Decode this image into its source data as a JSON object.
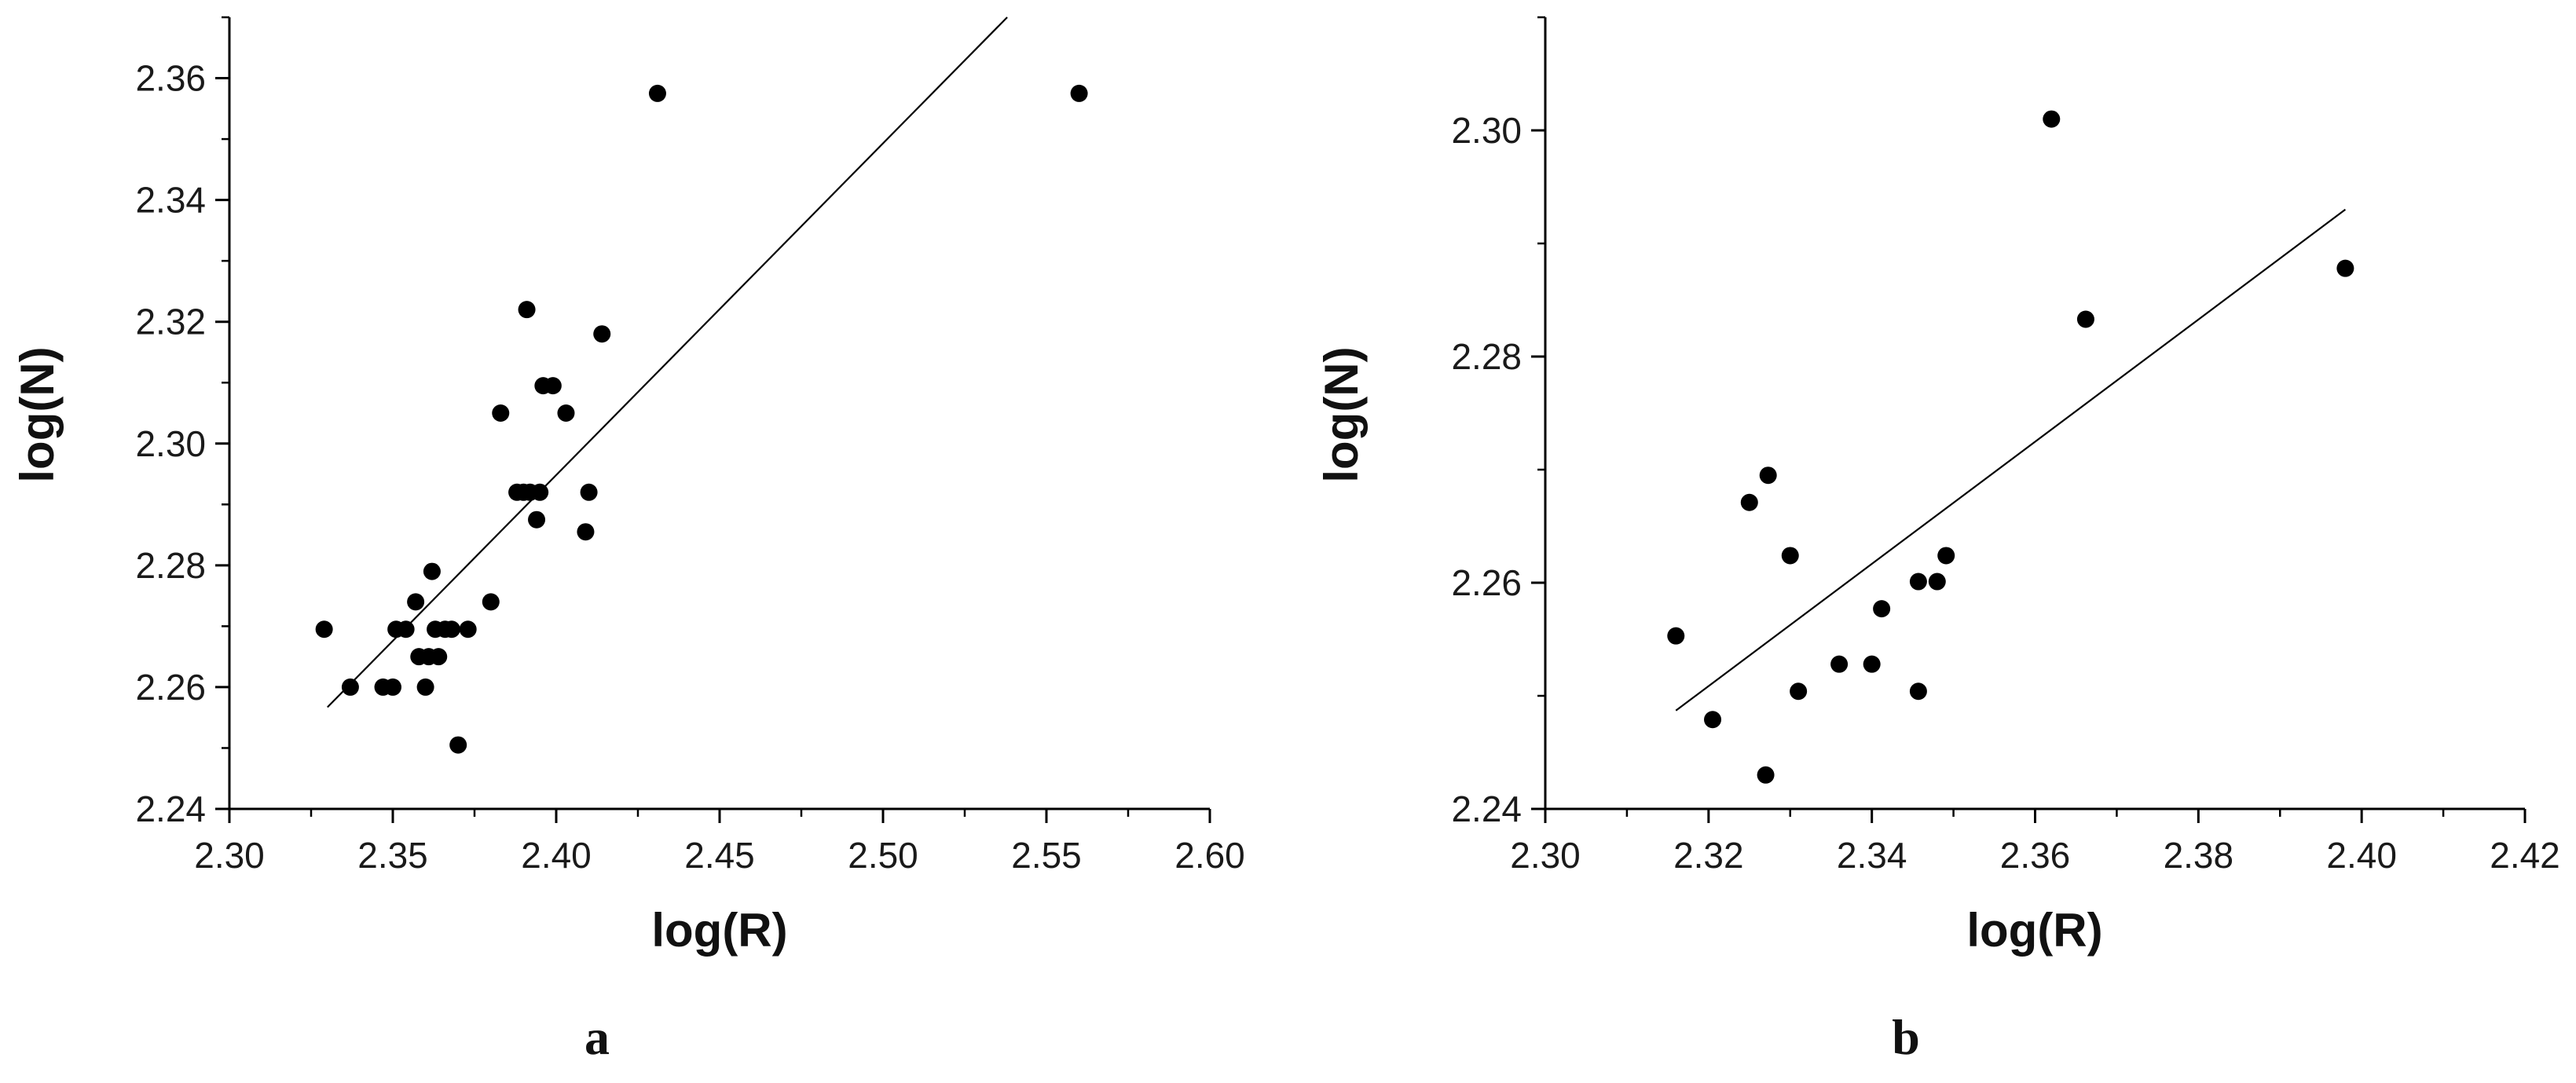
{
  "chart_data": [
    {
      "type": "scatter",
      "panel_label": "a",
      "xlabel": "log(R)",
      "ylabel": "log(N)",
      "xlim": [
        2.3,
        2.6
      ],
      "ylim": [
        2.24,
        2.37
      ],
      "xticks": [
        "2.30",
        "2.35",
        "2.40",
        "2.45",
        "2.50",
        "2.55",
        "2.60"
      ],
      "yticks": [
        "2.24",
        "2.26",
        "2.28",
        "2.30",
        "2.32",
        "2.34",
        "2.36"
      ],
      "grid": false,
      "points": [
        {
          "x": 2.329,
          "y": 2.2695
        },
        {
          "x": 2.337,
          "y": 2.26
        },
        {
          "x": 2.347,
          "y": 2.26
        },
        {
          "x": 2.35,
          "y": 2.26
        },
        {
          "x": 2.351,
          "y": 2.2695
        },
        {
          "x": 2.354,
          "y": 2.2695
        },
        {
          "x": 2.357,
          "y": 2.274
        },
        {
          "x": 2.358,
          "y": 2.265
        },
        {
          "x": 2.36,
          "y": 2.26
        },
        {
          "x": 2.361,
          "y": 2.265
        },
        {
          "x": 2.362,
          "y": 2.279
        },
        {
          "x": 2.363,
          "y": 2.2695
        },
        {
          "x": 2.364,
          "y": 2.265
        },
        {
          "x": 2.366,
          "y": 2.2695
        },
        {
          "x": 2.368,
          "y": 2.2695
        },
        {
          "x": 2.37,
          "y": 2.2505
        },
        {
          "x": 2.373,
          "y": 2.2695
        },
        {
          "x": 2.38,
          "y": 2.274
        },
        {
          "x": 2.383,
          "y": 2.305
        },
        {
          "x": 2.388,
          "y": 2.292
        },
        {
          "x": 2.39,
          "y": 2.292
        },
        {
          "x": 2.391,
          "y": 2.322
        },
        {
          "x": 2.392,
          "y": 2.292
        },
        {
          "x": 2.394,
          "y": 2.2875
        },
        {
          "x": 2.395,
          "y": 2.292
        },
        {
          "x": 2.396,
          "y": 2.3095
        },
        {
          "x": 2.399,
          "y": 2.3095
        },
        {
          "x": 2.403,
          "y": 2.305
        },
        {
          "x": 2.409,
          "y": 2.2855
        },
        {
          "x": 2.41,
          "y": 2.292
        },
        {
          "x": 2.414,
          "y": 2.318
        },
        {
          "x": 2.431,
          "y": 2.3575
        },
        {
          "x": 2.56,
          "y": 2.3575
        }
      ],
      "fit_line": [
        {
          "x": 2.33,
          "y": 2.2567
        },
        {
          "x": 2.538,
          "y": 2.37
        }
      ]
    },
    {
      "type": "scatter",
      "panel_label": "b",
      "xlabel": "log(R)",
      "ylabel": "log(N)",
      "xlim": [
        2.3,
        2.42
      ],
      "ylim": [
        2.24,
        2.31
      ],
      "xticks": [
        "2.30",
        "2.32",
        "2.34",
        "2.36",
        "2.38",
        "2.40",
        "2.42"
      ],
      "yticks": [
        "2.24",
        "2.26",
        "2.28",
        "2.30"
      ],
      "grid": false,
      "points": [
        {
          "x": 2.316,
          "y": 2.2553
        },
        {
          "x": 2.3205,
          "y": 2.2479
        },
        {
          "x": 2.325,
          "y": 2.2671
        },
        {
          "x": 2.327,
          "y": 2.243
        },
        {
          "x": 2.3273,
          "y": 2.2695
        },
        {
          "x": 2.33,
          "y": 2.2624
        },
        {
          "x": 2.331,
          "y": 2.2504
        },
        {
          "x": 2.336,
          "y": 2.2528
        },
        {
          "x": 2.34,
          "y": 2.2528
        },
        {
          "x": 2.3412,
          "y": 2.2577
        },
        {
          "x": 2.3457,
          "y": 2.2601
        },
        {
          "x": 2.3457,
          "y": 2.2504
        },
        {
          "x": 2.348,
          "y": 2.2601
        },
        {
          "x": 2.3491,
          "y": 2.2624
        },
        {
          "x": 2.362,
          "y": 2.301
        },
        {
          "x": 2.3662,
          "y": 2.2833
        },
        {
          "x": 2.398,
          "y": 2.2878
        }
      ],
      "fit_line": [
        {
          "x": 2.316,
          "y": 2.2487
        },
        {
          "x": 2.398,
          "y": 2.293
        }
      ]
    }
  ]
}
